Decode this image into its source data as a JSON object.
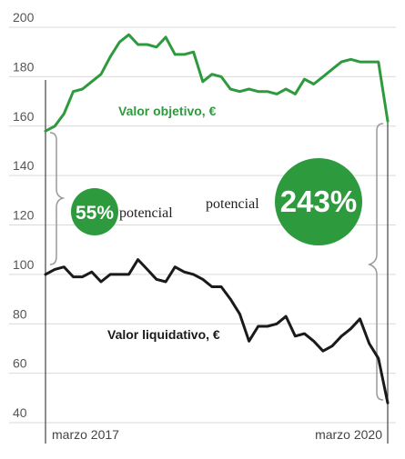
{
  "chart_data": {
    "type": "line",
    "title": "",
    "xlabel": "",
    "ylabel": "",
    "ylim": [
      40,
      200
    ],
    "yticks": [
      40,
      60,
      80,
      100,
      120,
      140,
      160,
      180,
      200
    ],
    "x_tick_labels": [
      "marzo 2017",
      "marzo 2020"
    ],
    "grid": true,
    "colors": {
      "green": "#2e9a3e",
      "black": "#1a1a1a",
      "grid": "#d9d9d9"
    },
    "series": [
      {
        "name": "Valor objetivo, €",
        "color": "#2e9a3e",
        "values": [
          158,
          160,
          165,
          174,
          175,
          178,
          181,
          188,
          194,
          197,
          193,
          193,
          192,
          196,
          189,
          189,
          190,
          178,
          181,
          180,
          175,
          174,
          175,
          174,
          174,
          173,
          175,
          173,
          179,
          177,
          180,
          183,
          186,
          187,
          186,
          186,
          186,
          162
        ]
      },
      {
        "name": "Valor liquidativo, €",
        "color": "#1a1a1a",
        "values": [
          100,
          102,
          103,
          99,
          99,
          101,
          97,
          100,
          100,
          100,
          106,
          102,
          98,
          97,
          103,
          101,
          100,
          98,
          95,
          95,
          90,
          84,
          73,
          79,
          79,
          80,
          83,
          75,
          76,
          73,
          69,
          71,
          75,
          78,
          82,
          72,
          66,
          48
        ]
      }
    ],
    "annotations": [
      {
        "id": "left",
        "percent_label": "55%",
        "text": "potencial"
      },
      {
        "id": "right",
        "percent_label": "243%",
        "text": "potencial"
      }
    ]
  }
}
